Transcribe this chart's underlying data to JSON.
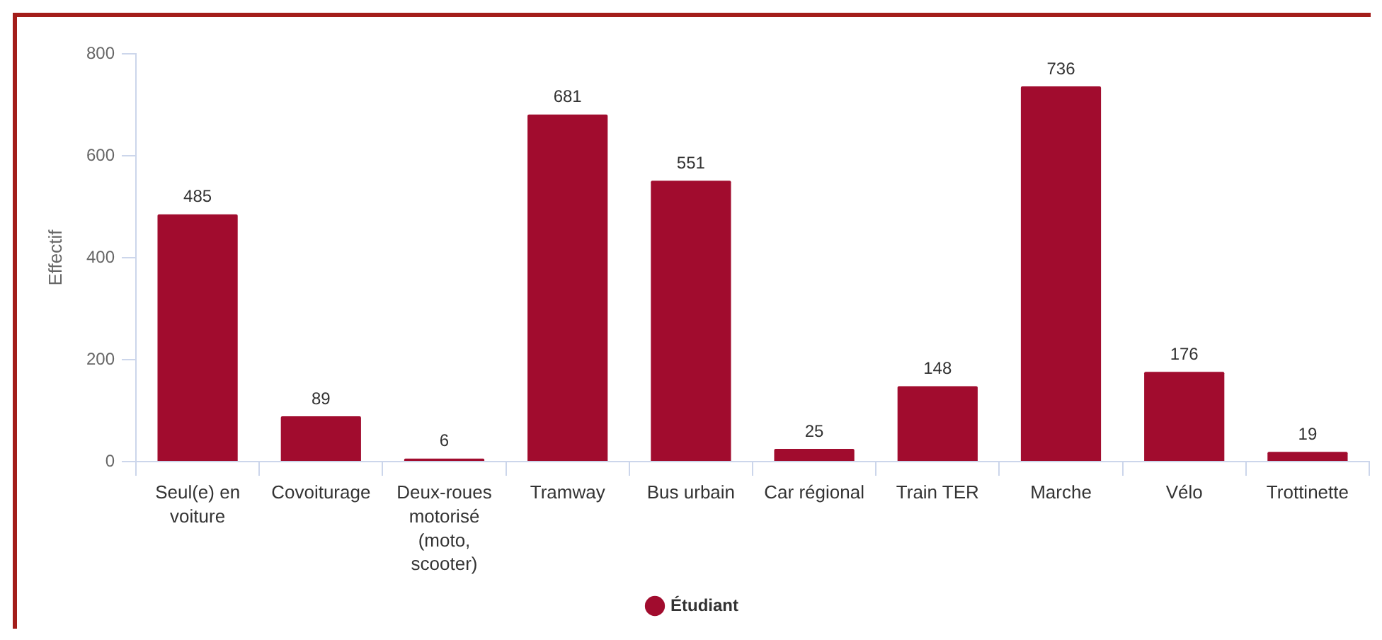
{
  "chart_data": {
    "type": "bar",
    "categories": [
      "Seul(e) en voiture",
      "Covoiturage",
      "Deux-roues motorisé (moto, scooter)",
      "Tramway",
      "Bus urbain",
      "Car régional",
      "Train TER",
      "Marche",
      "Vélo",
      "Trottinette"
    ],
    "series": [
      {
        "name": "Étudiant",
        "color": "#a10c2e",
        "values": [
          485,
          89,
          6,
          681,
          551,
          25,
          148,
          736,
          176,
          19
        ]
      }
    ],
    "ylabel": "Effectif",
    "ylim": [
      0,
      800
    ],
    "yticks": [
      0,
      200,
      400,
      600,
      800
    ],
    "grid": false,
    "legend": "bottom",
    "data_labels": true
  }
}
